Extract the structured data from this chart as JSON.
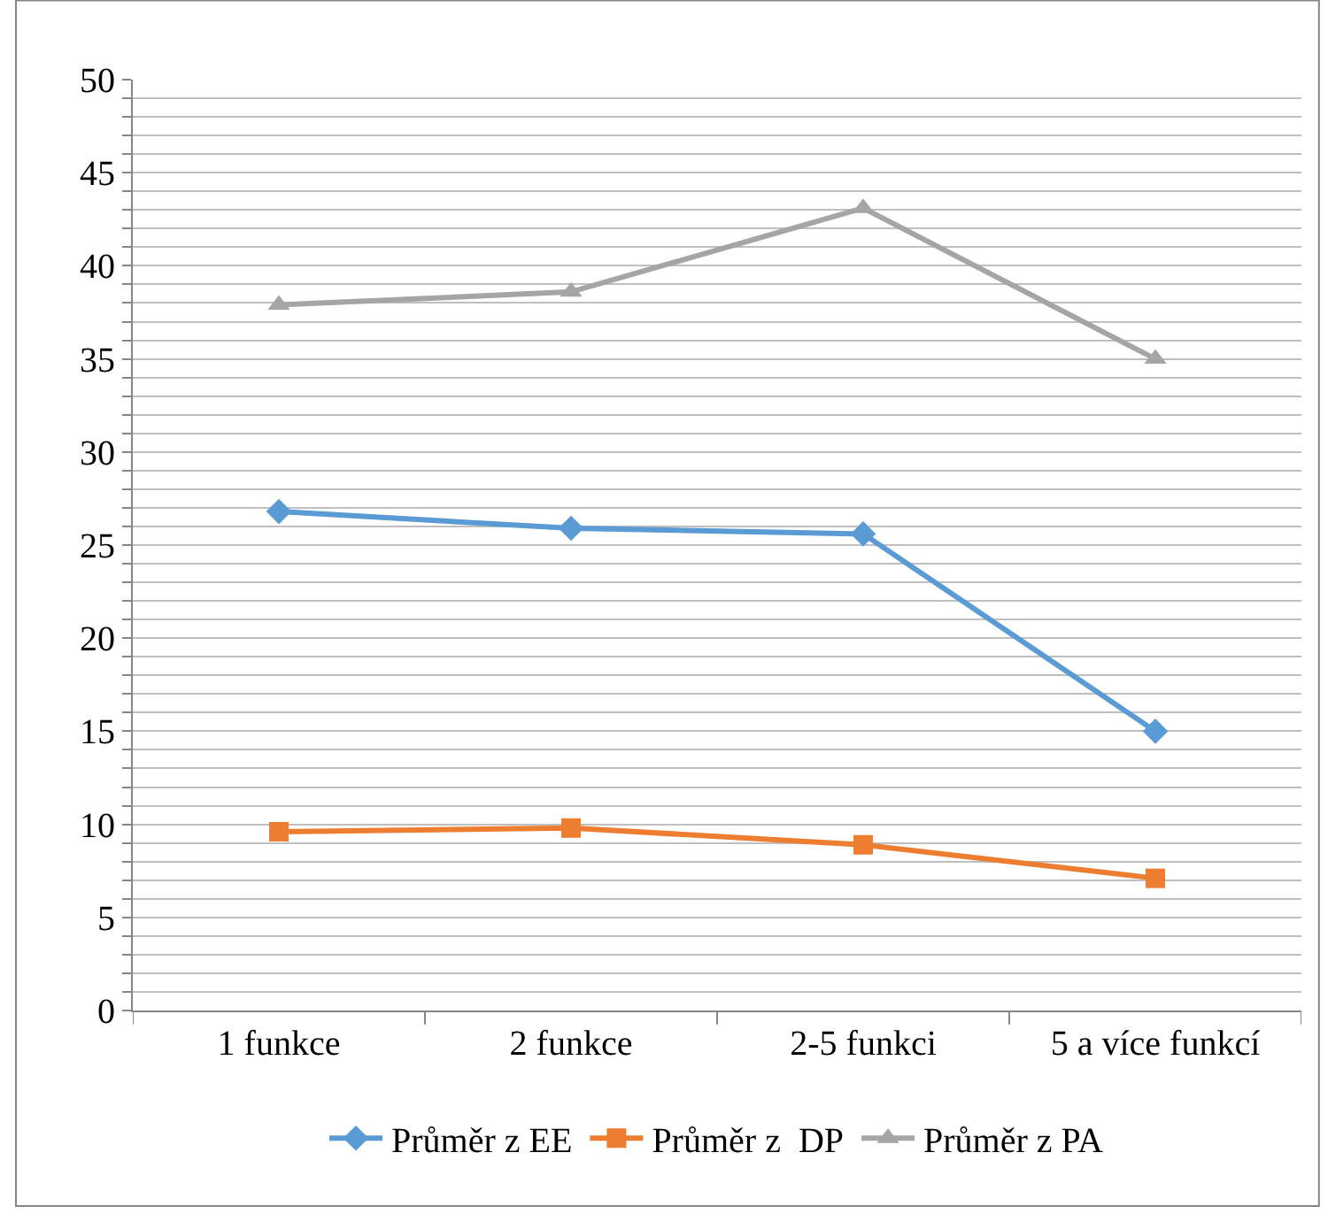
{
  "chart_data": {
    "type": "line",
    "categories": [
      "1 funkce",
      "2 funkce",
      "2-5 funkci",
      "5 a více funkcí"
    ],
    "series": [
      {
        "name": "Průměr z EE",
        "color": "#5b9bd5",
        "marker": "diamond",
        "values": [
          26.8,
          25.9,
          25.6,
          15.0
        ]
      },
      {
        "name": "Průměr z  DP",
        "color": "#ed7d31",
        "marker": "square",
        "values": [
          9.6,
          9.8,
          8.9,
          7.1
        ]
      },
      {
        "name": "Průměr z PA",
        "color": "#a5a5a5",
        "marker": "triangle",
        "values": [
          37.9,
          38.6,
          43.1,
          35.0
        ]
      }
    ],
    "ylim": [
      0,
      50
    ],
    "yticks": [
      0,
      {
        "value": 1,
        "label": null
      },
      {
        "value": 2,
        "label": null
      },
      {
        "value": 3,
        "label": null
      },
      {
        "value": 4,
        "label": null
      },
      5,
      {
        "value": 6,
        "label": null
      },
      {
        "value": 7,
        "label": null
      },
      {
        "value": 8,
        "label": null
      },
      {
        "value": 9,
        "label": null
      },
      10,
      {
        "value": 11,
        "label": null
      },
      {
        "value": 12,
        "label": null
      },
      {
        "value": 13,
        "label": null
      },
      {
        "value": 14,
        "label": null
      },
      15,
      {
        "value": 16,
        "label": null
      },
      {
        "value": 17,
        "label": null
      },
      {
        "value": 18,
        "label": null
      },
      {
        "value": 19,
        "label": null
      },
      20,
      {
        "value": 21,
        "label": null
      },
      {
        "value": 22,
        "label": null
      },
      {
        "value": 23,
        "label": null
      },
      {
        "value": 24,
        "label": null
      },
      25,
      {
        "value": 26,
        "label": null
      },
      {
        "value": 27,
        "label": null
      },
      {
        "value": 28,
        "label": null
      },
      {
        "value": 29,
        "label": null
      },
      30,
      {
        "value": 31,
        "label": null
      },
      {
        "value": 32,
        "label": null
      },
      {
        "value": 33,
        "label": null
      },
      {
        "value": 34,
        "label": null
      },
      35,
      {
        "value": 36,
        "label": null
      },
      {
        "value": 37,
        "label": null
      },
      {
        "value": 38,
        "label": null
      },
      {
        "value": 39,
        "label": null
      },
      40,
      {
        "value": 41,
        "label": null
      },
      {
        "value": 42,
        "label": null
      },
      {
        "value": 43,
        "label": null
      },
      {
        "value": 44,
        "label": null
      },
      45,
      {
        "value": 46,
        "label": null
      },
      {
        "value": 47,
        "label": null
      },
      {
        "value": 48,
        "label": null
      },
      {
        "value": 49,
        "label": null
      },
      50
    ],
    "grid": true,
    "legend": "bottom",
    "line_style": "solid"
  }
}
